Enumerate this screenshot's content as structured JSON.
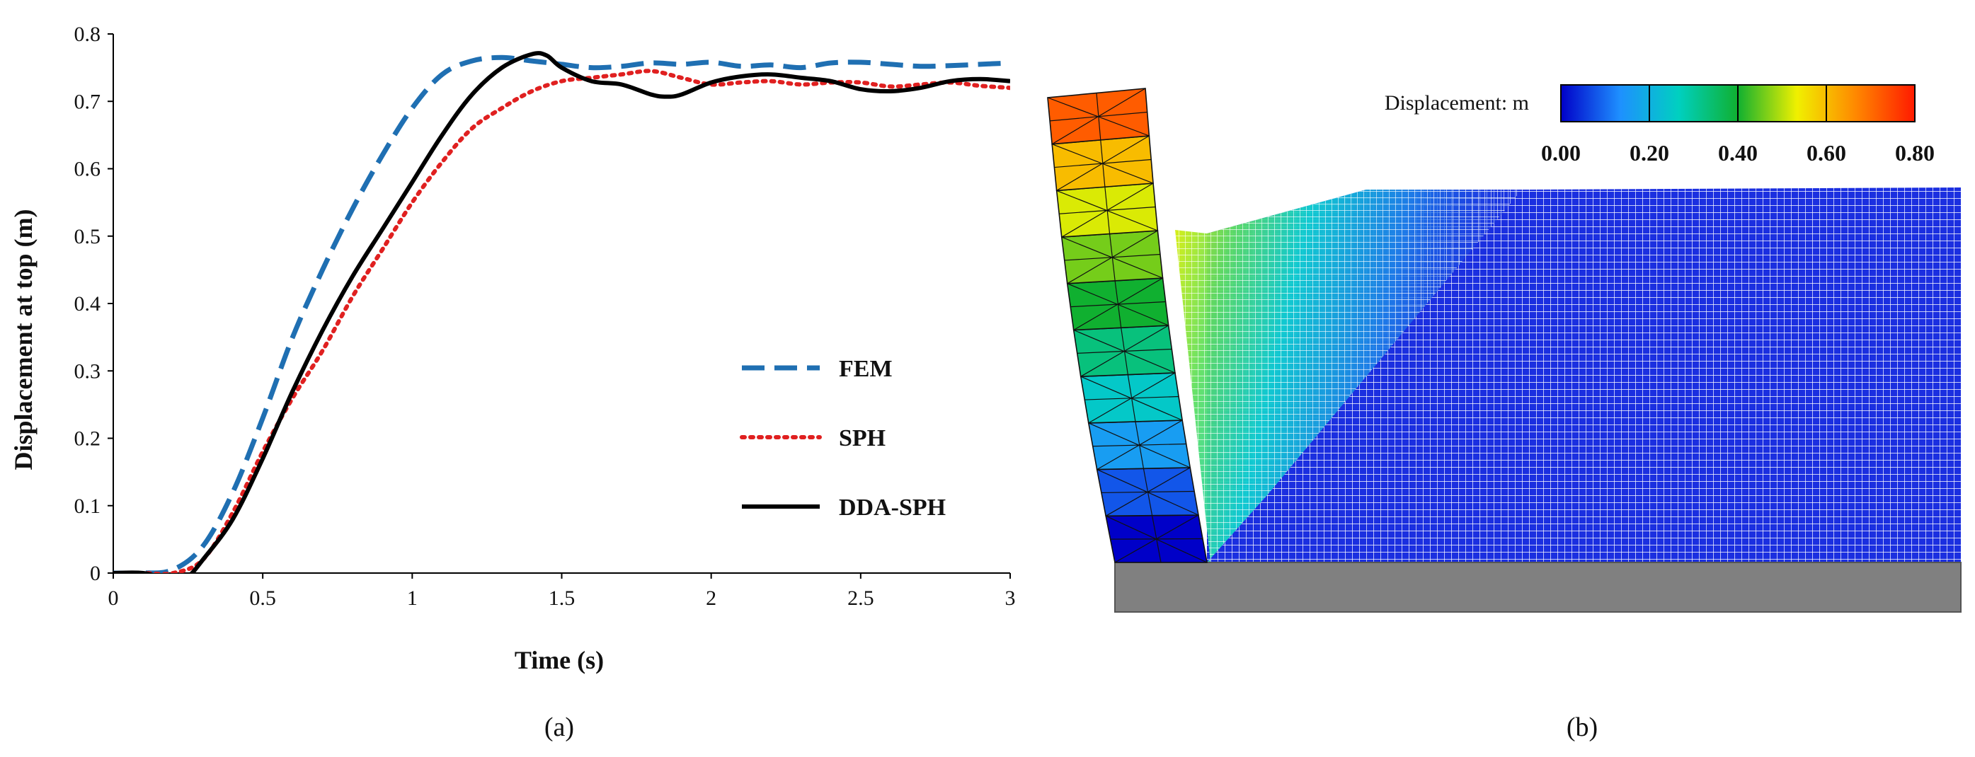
{
  "chart_data": [
    {
      "type": "line",
      "panel_label": "(a)",
      "xlabel": "Time (s)",
      "ylabel": "Displacement at top (m)",
      "xlim": [
        0,
        3
      ],
      "ylim": [
        0,
        0.8
      ],
      "xticks": [
        "0",
        "0.5",
        "1",
        "1.5",
        "2",
        "2.5",
        "3"
      ],
      "yticks": [
        "0",
        "0.1",
        "0.2",
        "0.3",
        "0.4",
        "0.5",
        "0.6",
        "0.7",
        "0.8"
      ],
      "legend_position": "center-right",
      "series": [
        {
          "name": "FEM",
          "color": "#1f6fb2",
          "style": "dashed",
          "x": [
            0,
            0.1,
            0.2,
            0.3,
            0.4,
            0.5,
            0.6,
            0.7,
            0.8,
            0.9,
            1.0,
            1.1,
            1.2,
            1.3,
            1.4,
            1.5,
            1.6,
            1.7,
            1.8,
            1.9,
            2.0,
            2.1,
            2.2,
            2.3,
            2.4,
            2.5,
            2.6,
            2.7,
            2.8,
            2.9,
            3.0
          ],
          "y": [
            0,
            0.0,
            0.005,
            0.04,
            0.12,
            0.23,
            0.35,
            0.45,
            0.54,
            0.62,
            0.69,
            0.74,
            0.76,
            0.765,
            0.76,
            0.755,
            0.75,
            0.752,
            0.757,
            0.755,
            0.758,
            0.752,
            0.754,
            0.75,
            0.757,
            0.758,
            0.755,
            0.752,
            0.753,
            0.755,
            0.757
          ]
        },
        {
          "name": "SPH",
          "color": "#e02020",
          "style": "dotted",
          "x": [
            0,
            0.1,
            0.2,
            0.3,
            0.4,
            0.5,
            0.6,
            0.7,
            0.8,
            0.9,
            1.0,
            1.1,
            1.2,
            1.3,
            1.4,
            1.5,
            1.6,
            1.7,
            1.8,
            1.9,
            2.0,
            2.1,
            2.2,
            2.3,
            2.4,
            2.5,
            2.6,
            2.7,
            2.8,
            2.9,
            3.0
          ],
          "y": [
            0,
            0.0,
            0.0,
            0.02,
            0.09,
            0.18,
            0.26,
            0.33,
            0.41,
            0.48,
            0.55,
            0.61,
            0.66,
            0.69,
            0.715,
            0.73,
            0.735,
            0.74,
            0.745,
            0.735,
            0.725,
            0.728,
            0.73,
            0.725,
            0.728,
            0.728,
            0.722,
            0.725,
            0.728,
            0.723,
            0.72
          ]
        },
        {
          "name": "DDA-SPH",
          "color": "#000000",
          "style": "solid",
          "x": [
            0,
            0.1,
            0.2,
            0.25,
            0.3,
            0.4,
            0.5,
            0.6,
            0.7,
            0.8,
            0.9,
            1.0,
            1.1,
            1.2,
            1.3,
            1.4,
            1.45,
            1.5,
            1.6,
            1.7,
            1.8,
            1.85,
            1.9,
            2.0,
            2.1,
            2.2,
            2.3,
            2.4,
            2.5,
            2.6,
            2.7,
            2.8,
            2.9,
            3.0
          ],
          "y": [
            0,
            0.0,
            -0.01,
            -0.005,
            0.02,
            0.08,
            0.17,
            0.27,
            0.36,
            0.44,
            0.51,
            0.58,
            0.65,
            0.71,
            0.75,
            0.77,
            0.768,
            0.75,
            0.73,
            0.725,
            0.71,
            0.707,
            0.71,
            0.728,
            0.737,
            0.74,
            0.735,
            0.73,
            0.718,
            0.715,
            0.72,
            0.73,
            0.733,
            0.73
          ]
        }
      ]
    },
    {
      "type": "heatmap",
      "panel_label": "(b)",
      "colorbar": {
        "title": "Displacement: m",
        "range": [
          0,
          0.8
        ],
        "tick_labels": [
          "0.00",
          "0.20",
          "0.40",
          "0.60",
          "0.80"
        ],
        "colors": [
          "#0000c8",
          "#1e90ff",
          "#00d0c0",
          "#10b030",
          "#f0f000",
          "#ff8800",
          "#ff1a00"
        ]
      },
      "wall": {
        "segments": 10,
        "top_displacement": 0.75,
        "segment_values": [
          0.0,
          0.08,
          0.16,
          0.25,
          0.33,
          0.4,
          0.46,
          0.52,
          0.6,
          0.72
        ]
      },
      "soil": {
        "base_value": 0.02,
        "wedge_max_value": 0.5
      }
    }
  ]
}
